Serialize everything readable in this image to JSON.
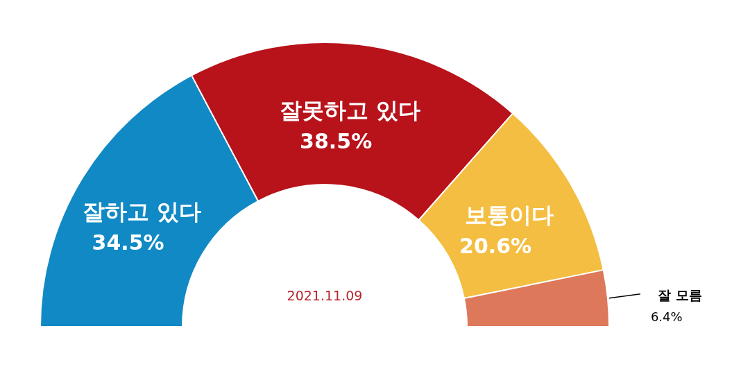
{
  "chart_data": {
    "type": "donut",
    "categories": [
      "잘하고 있다",
      "잘못하고 있다",
      "보통이다",
      "잘 모름"
    ],
    "values": [
      34.5,
      38.5,
      20.6,
      6.4
    ],
    "colors": [
      "#1089c4",
      "#b8121a",
      "#f4be42",
      "#dd785b"
    ],
    "value_labels": [
      "34.5%",
      "38.5%",
      "20.6%",
      "6.4%"
    ],
    "annotations": [
      "2021.11.09"
    ]
  }
}
